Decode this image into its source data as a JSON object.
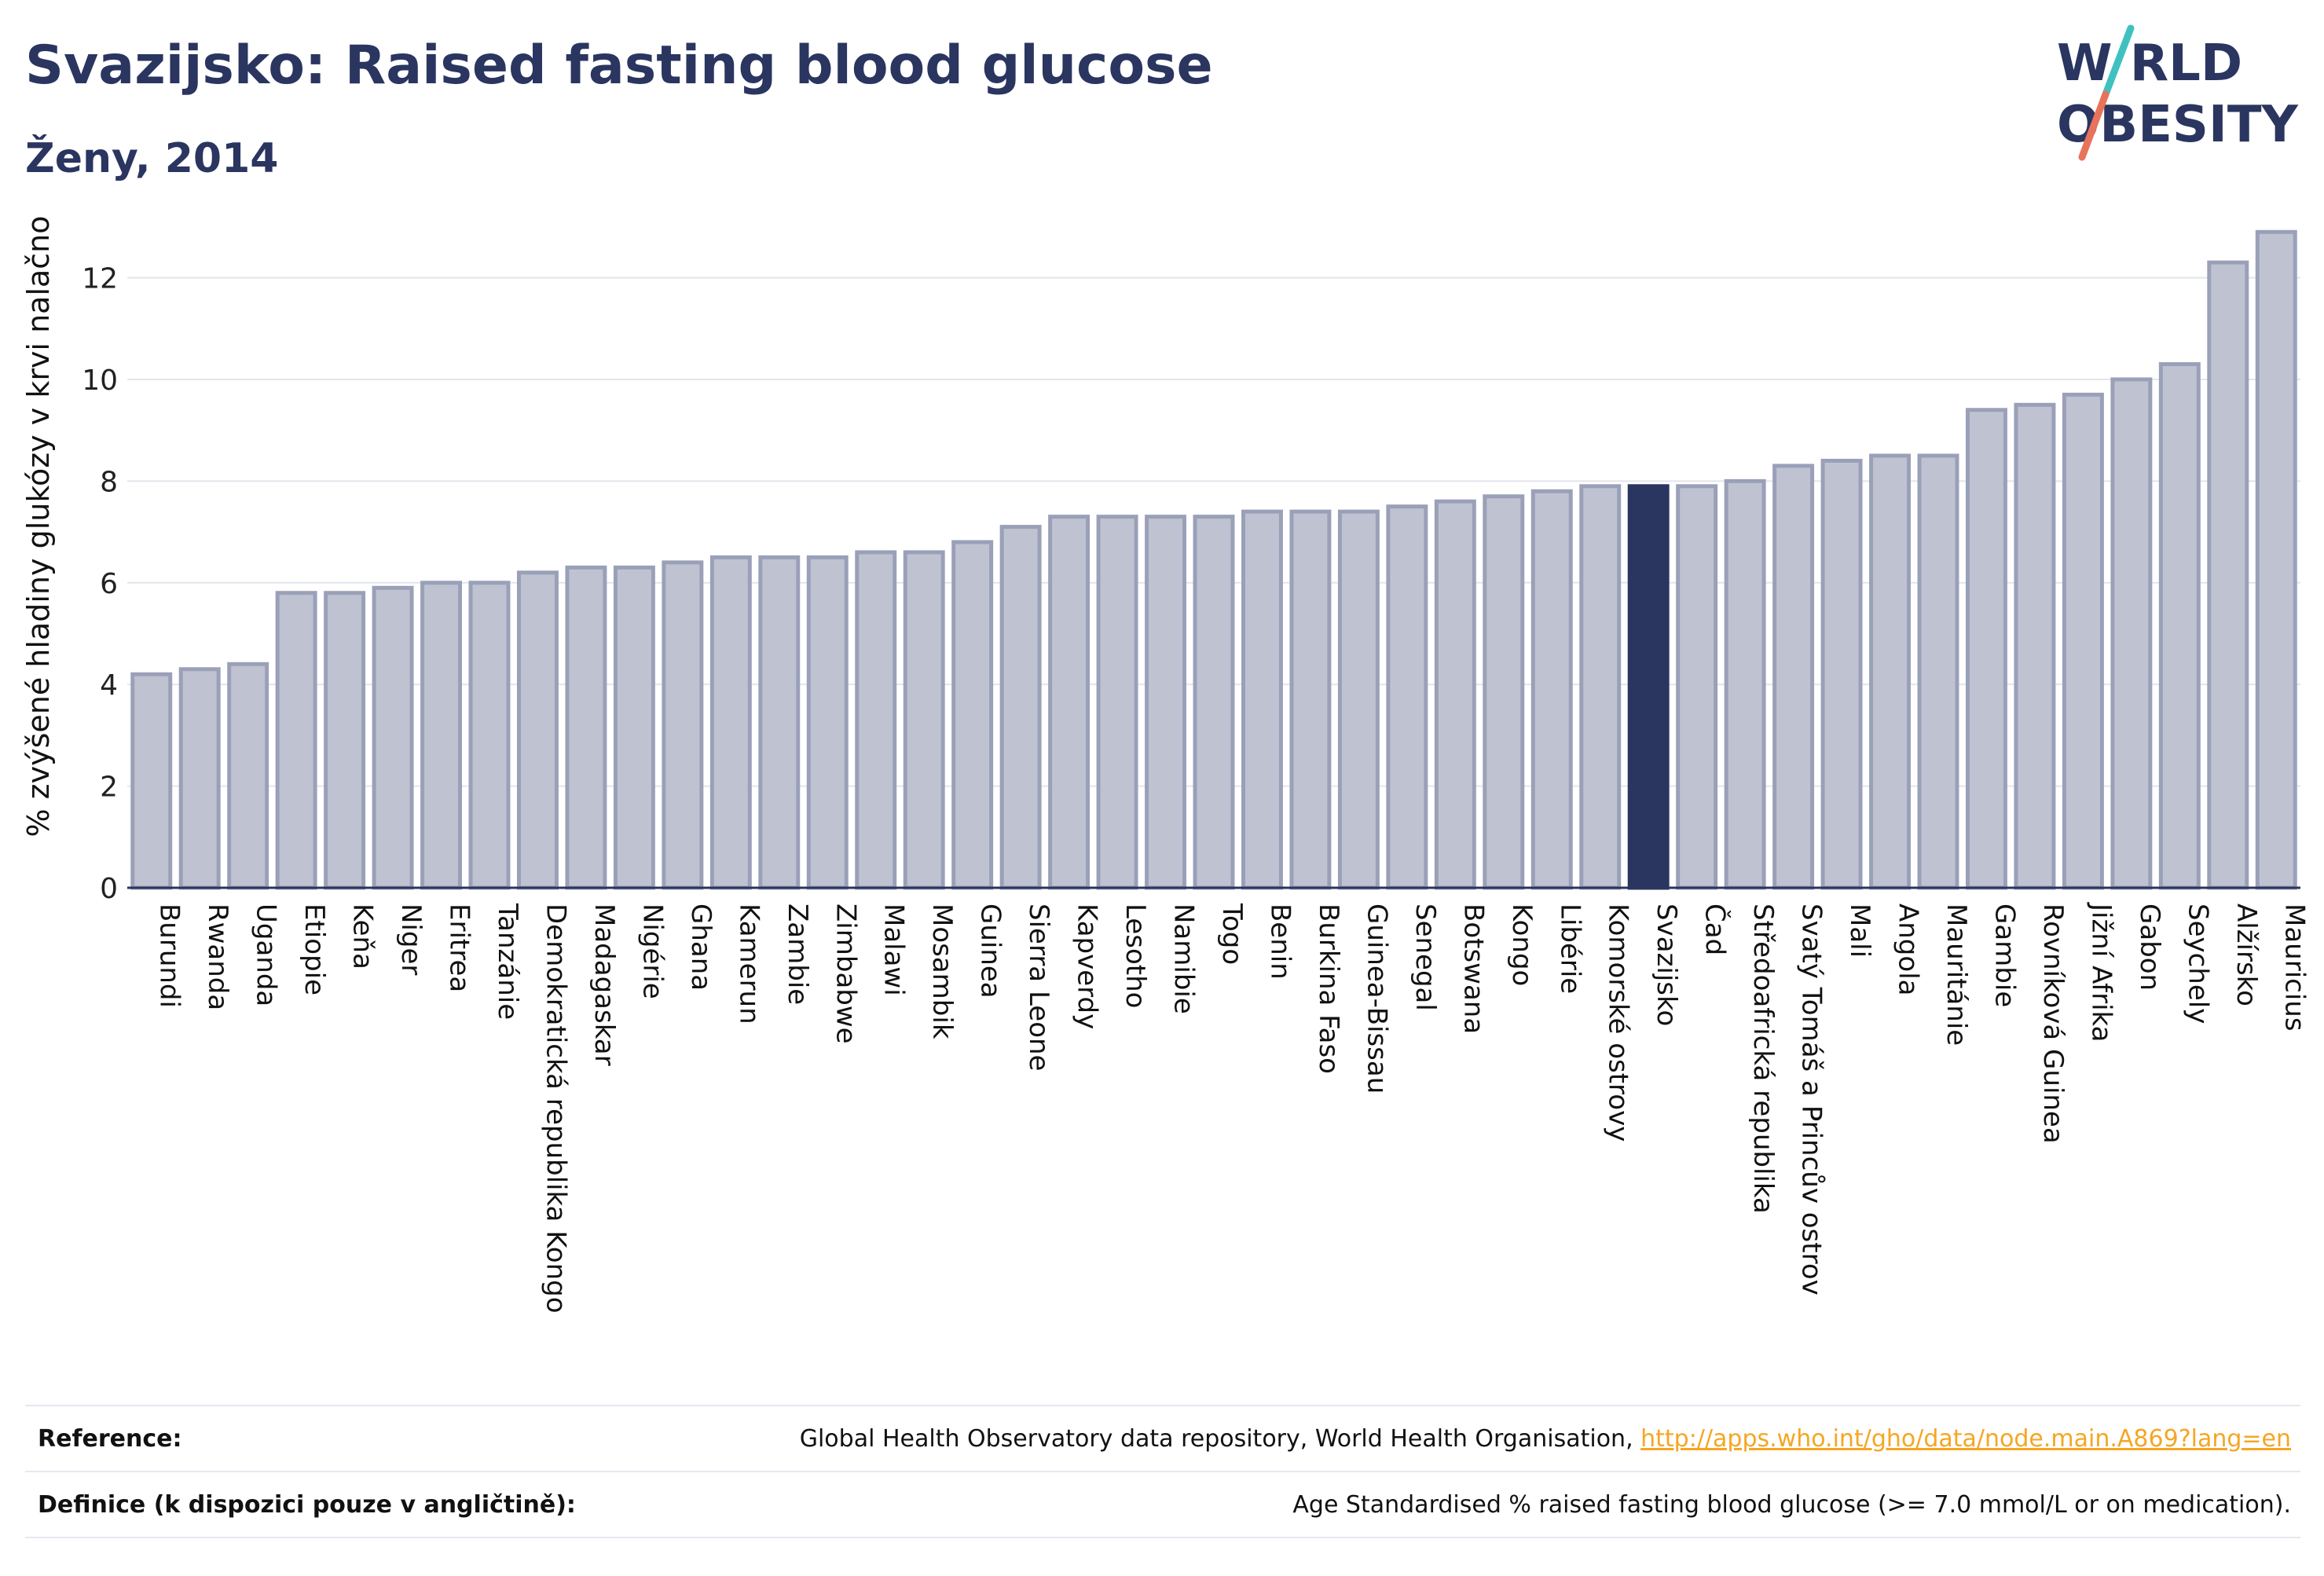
{
  "title": "Svazijsko: Raised fasting blood glucose",
  "subtitle": "Ženy, 2014",
  "logo": {
    "line1": "W RLD",
    "line2": "OBESITY",
    "colors": {
      "text": "#2a3560",
      "slash_top": "#3fc1c0",
      "slash_bottom": "#e8735a"
    }
  },
  "chart_data": {
    "type": "bar",
    "ylabel": "% zvýšené hladiny glukózy v krvi nalačno",
    "xlabel": "",
    "ylim": [
      0,
      13.6
    ],
    "yticks": [
      0,
      2,
      4,
      6,
      8,
      10,
      12
    ],
    "grid": true,
    "highlight": "Svazijsko",
    "colors": {
      "bar": "#bfc3d1",
      "bar_edge": "#9aa0b8",
      "highlight": "#2a3560",
      "axis": "#2a3560",
      "grid": "#e3e5ec"
    },
    "categories": [
      "Burundi",
      "Rwanda",
      "Uganda",
      "Etiopie",
      "Keňa",
      "Niger",
      "Eritrea",
      "Tanzánie",
      "Demokratická republika Kongo",
      "Madagaskar",
      "Nigérie",
      "Ghana",
      "Kamerun",
      "Zambie",
      "Zimbabwe",
      "Malawi",
      "Mosambik",
      "Guinea",
      "Sierra Leone",
      "Kapverdy",
      "Lesotho",
      "Namibie",
      "Togo",
      "Benin",
      "Burkina Faso",
      "Guinea-Bissau",
      "Senegal",
      "Botswana",
      "Kongo",
      "Libérie",
      "Komorské ostrovy",
      "Svazijsko",
      "Čad",
      "Středoafrická republika",
      "Svatý Tomáš a Princův ostrov",
      "Mali",
      "Angola",
      "Mauritánie",
      "Gambie",
      "Rovníková Guinea",
      "Jižní Afrika",
      "Gabon",
      "Seychely",
      "Alžírsko",
      "Mauricius"
    ],
    "values": [
      4.2,
      4.3,
      4.4,
      5.8,
      5.8,
      5.9,
      6.0,
      6.0,
      6.2,
      6.3,
      6.3,
      6.4,
      6.5,
      6.5,
      6.5,
      6.6,
      6.6,
      6.8,
      7.1,
      7.3,
      7.3,
      7.3,
      7.3,
      7.4,
      7.4,
      7.4,
      7.5,
      7.6,
      7.7,
      7.8,
      7.9,
      7.9,
      7.9,
      8.0,
      8.3,
      8.4,
      8.5,
      8.5,
      9.4,
      9.5,
      9.7,
      10.0,
      10.3,
      12.3,
      12.9
    ]
  },
  "reference": {
    "label": "Reference:",
    "text": "Global Health Observatory data repository, World Health Organisation, ",
    "link": "http://apps.who.int/gho/data/node.main.A869?lang=en"
  },
  "definition": {
    "label": "Definice (k dispozici pouze v angličtině):",
    "text": "Age Standardised % raised fasting blood glucose (>= 7.0 mmol/L or on medication)."
  }
}
